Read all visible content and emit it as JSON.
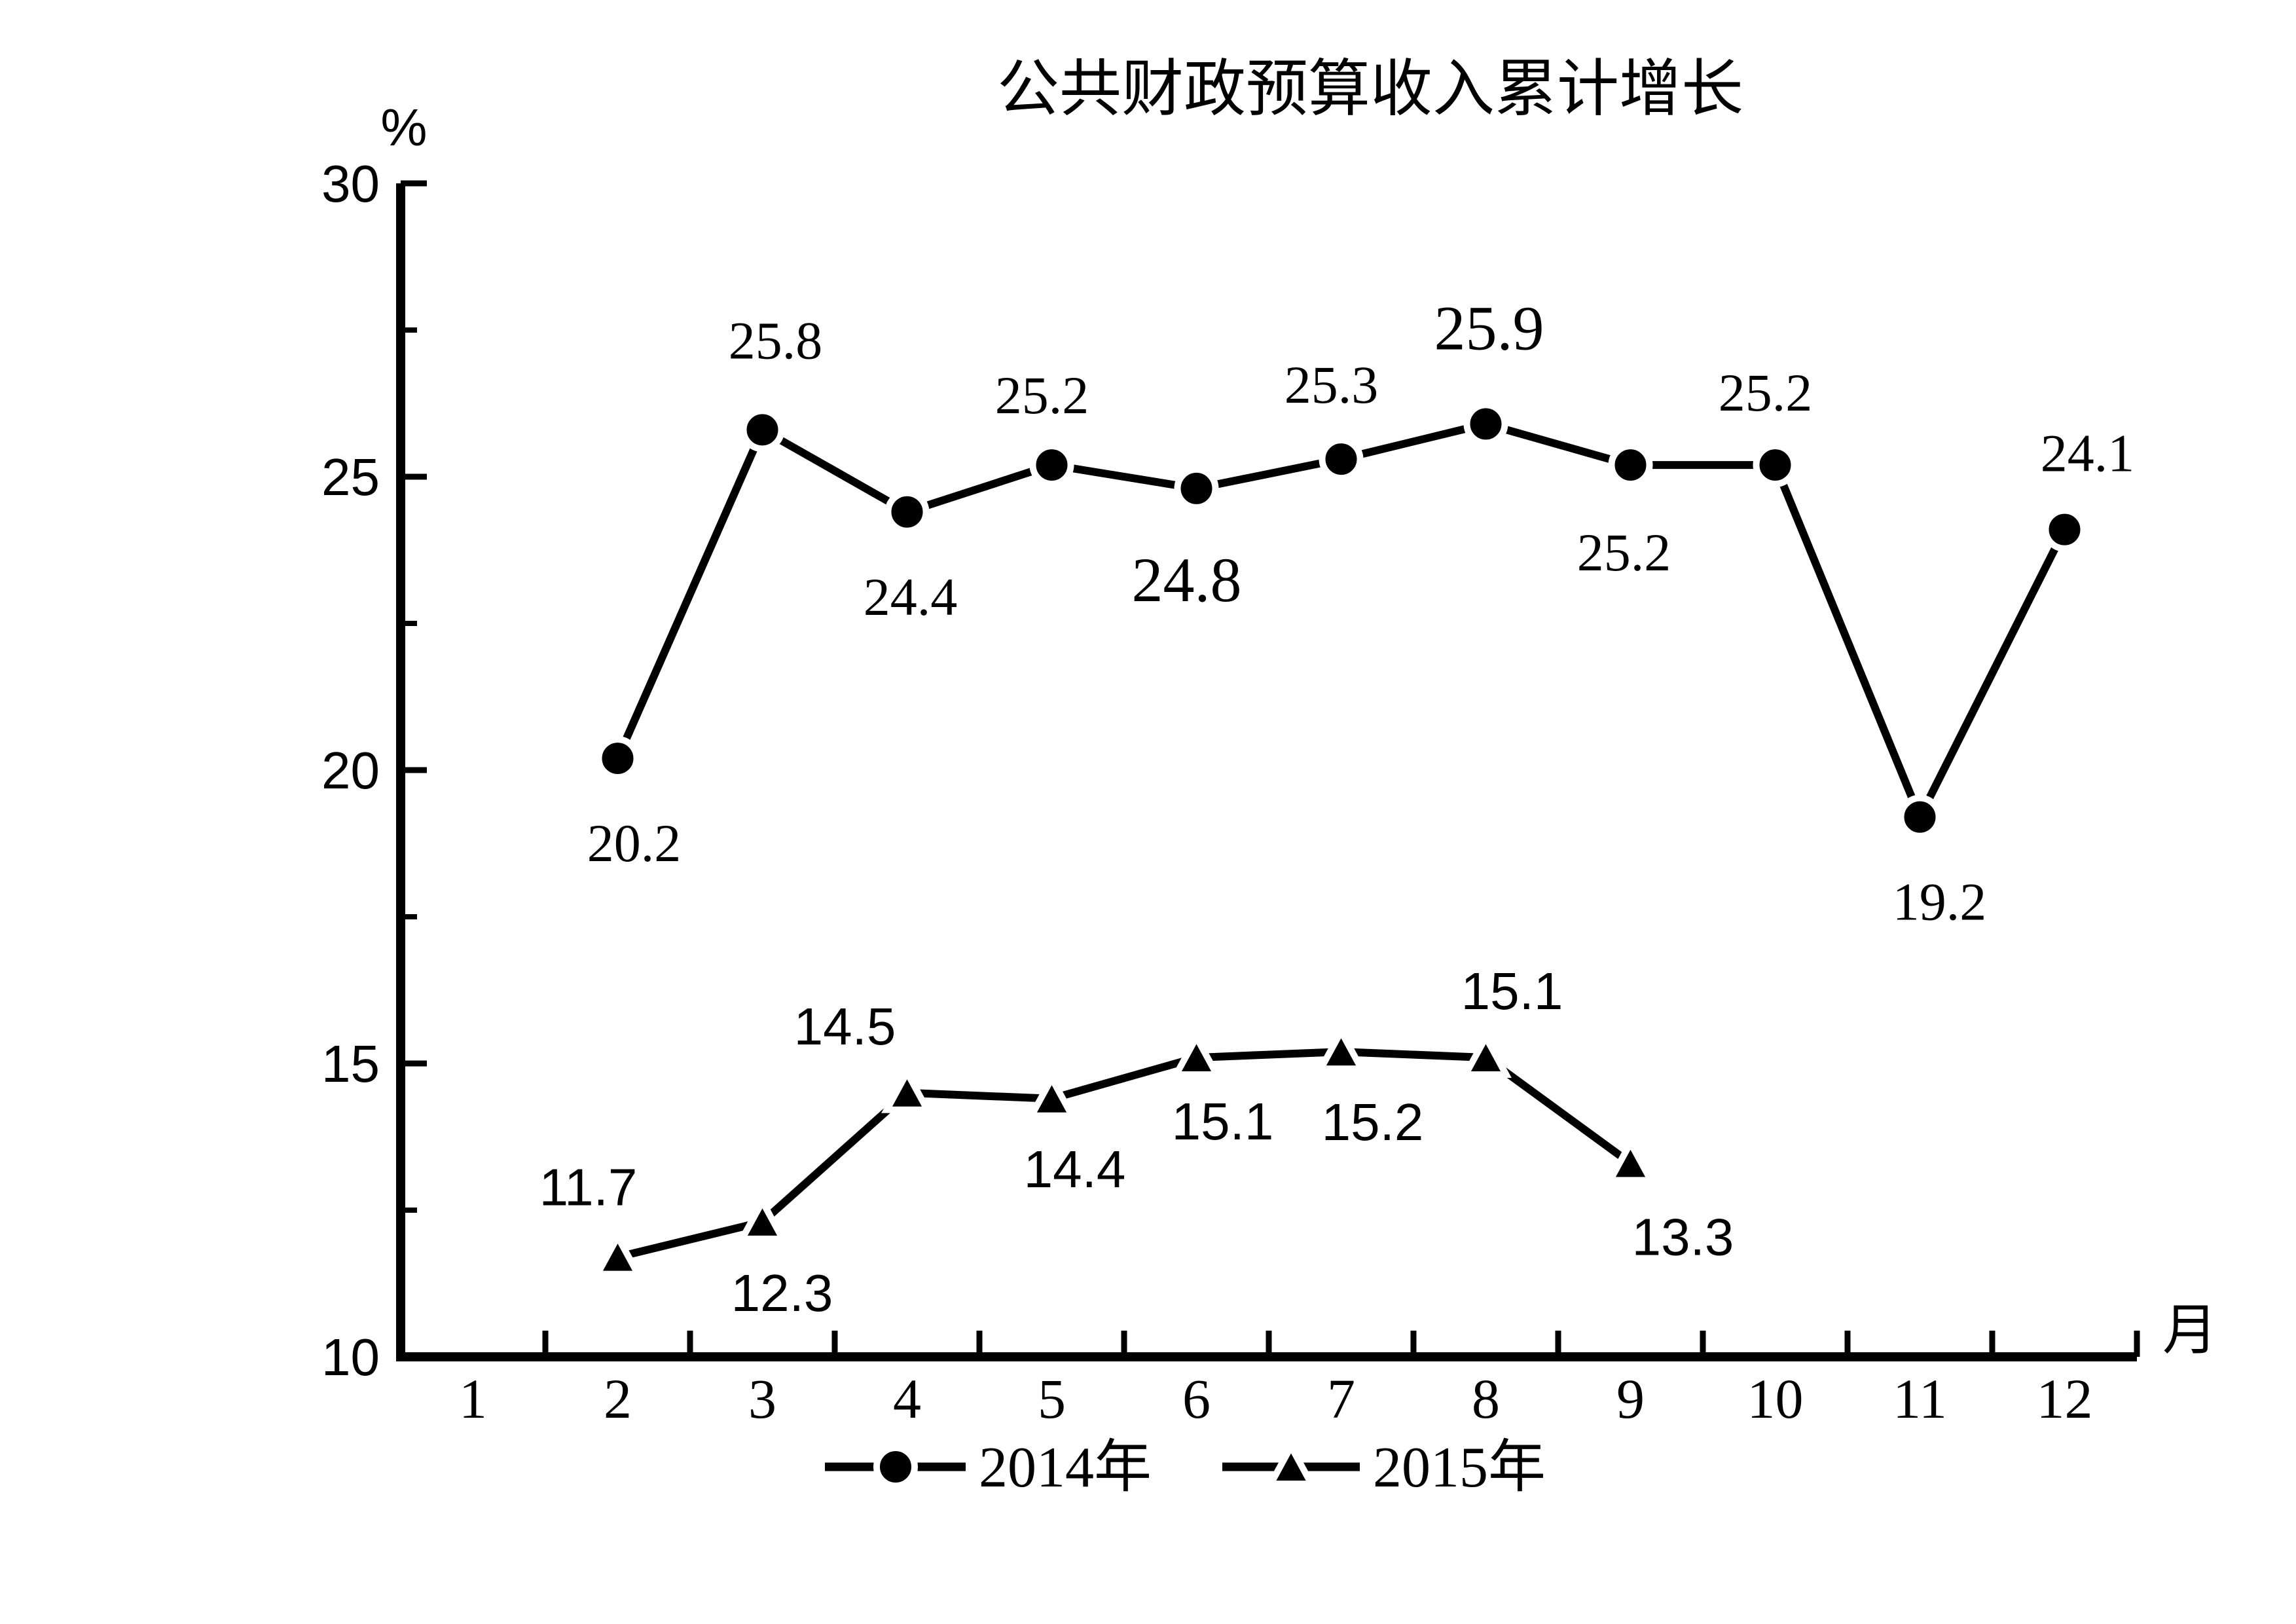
{
  "title": "公共财政预算收入累计增长",
  "colors": {
    "foreground": "#000000",
    "background": "#ffffff"
  },
  "y_axis": {
    "unit_label": "%",
    "tick_labels": [
      "30",
      "25",
      "20",
      "15",
      "10"
    ],
    "major_ticks": [
      30,
      25,
      20,
      15
    ],
    "minor_ticks": [
      27.5,
      22.5,
      17.5,
      12.5
    ],
    "min": 10,
    "max": 30
  },
  "x_axis": {
    "unit_label": "月",
    "tick_labels": [
      "1",
      "2",
      "3",
      "4",
      "5",
      "6",
      "7",
      "8",
      "9",
      "10",
      "11",
      "12"
    ]
  },
  "legend": {
    "items": [
      {
        "label": "2014年",
        "marker": "circle"
      },
      {
        "label": "2015年",
        "marker": "triangle"
      }
    ]
  },
  "chart_data": {
    "type": "line",
    "title": "公共财政预算收入累计增长",
    "xlabel": "月",
    "ylabel": "%",
    "ylim": [
      10,
      30
    ],
    "x_categories": [
      1,
      2,
      3,
      4,
      5,
      6,
      7,
      8,
      9,
      10,
      11,
      12
    ],
    "grid": false,
    "legend_position": "bottom",
    "series": [
      {
        "name": "2014年",
        "marker": "circle",
        "label_font": "serif",
        "points": [
          {
            "month": 2,
            "value": 20.2,
            "label": "20.2",
            "dx": 25,
            "dy": 128,
            "fs": 82
          },
          {
            "month": 3,
            "value": 25.8,
            "label": "25.8",
            "dx": 20,
            "dy": -138,
            "fs": 82
          },
          {
            "month": 4,
            "value": 24.4,
            "label": "24.4",
            "dx": 5,
            "dy": 128,
            "fs": 82
          },
          {
            "month": 5,
            "value": 25.2,
            "label": "25.2",
            "dx": -15,
            "dy": -108,
            "fs": 82
          },
          {
            "month": 6,
            "value": 24.8,
            "label": "24.8",
            "dx": -15,
            "dy": 138,
            "fs": 96
          },
          {
            "month": 7,
            "value": 25.3,
            "label": "25.3",
            "dx": -15,
            "dy": -115,
            "fs": 82
          },
          {
            "month": 8,
            "value": 25.9,
            "label": "25.9",
            "dx": 5,
            "dy": -148,
            "fs": 96
          },
          {
            "month": 9,
            "value": 25.2,
            "label": "25.2",
            "dx": -10,
            "dy": 132,
            "fs": 82
          },
          {
            "month": 10,
            "value": 25.2,
            "label": "25.2",
            "dx": -15,
            "dy": -112,
            "fs": 82
          },
          {
            "month": 11,
            "value": 19.2,
            "label": "19.2",
            "dx": 30,
            "dy": 128,
            "fs": 82
          },
          {
            "month": 12,
            "value": 24.1,
            "label": "24.1",
            "dx": 35,
            "dy": -118,
            "fs": 82
          }
        ]
      },
      {
        "name": "2015年",
        "marker": "triangle",
        "label_font": "sans",
        "points": [
          {
            "month": 2,
            "value": 11.7,
            "label": "11.7",
            "dx": -45,
            "dy": -107,
            "fs": 80
          },
          {
            "month": 3,
            "value": 12.3,
            "label": "12.3",
            "dx": 30,
            "dy": 108,
            "fs": 80
          },
          {
            "month": 4,
            "value": 14.5,
            "label": "14.5",
            "dx": -95,
            "dy": -102,
            "fs": 80
          },
          {
            "month": 5,
            "value": 14.4,
            "label": "14.4",
            "dx": 35,
            "dy": 107,
            "fs": 80
          },
          {
            "month": 6,
            "value": 15.1,
            "label": "15.1",
            "dx": 40,
            "dy": 97,
            "fs": 80
          },
          {
            "month": 7,
            "value": 15.2,
            "label": "15.2",
            "dx": 48,
            "dy": 107,
            "fs": 80
          },
          {
            "month": 8,
            "value": 15.1,
            "label": "15.1",
            "dx": 40,
            "dy": -102,
            "fs": 80
          },
          {
            "month": 9,
            "value": 13.3,
            "label": "13.3",
            "dx": 80,
            "dy": 112,
            "fs": 80
          }
        ]
      }
    ]
  }
}
